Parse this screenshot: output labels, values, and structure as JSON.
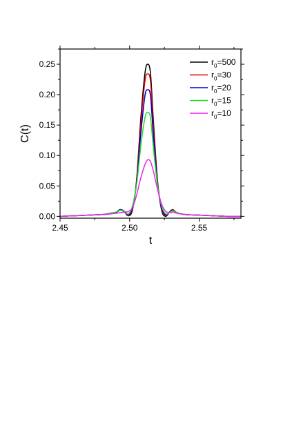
{
  "chart_data": {
    "type": "line",
    "title": "",
    "xlabel": "t",
    "ylabel": "C(t)",
    "xlim": [
      2.45,
      2.58
    ],
    "ylim": [
      -0.003,
      0.275
    ],
    "xticks": [
      2.45,
      2.5,
      2.55
    ],
    "xtick_labels": [
      "2.45",
      "2.50",
      "2.55"
    ],
    "yticks": [
      0.0,
      0.05,
      0.1,
      0.15,
      0.2,
      0.25
    ],
    "ytick_labels": [
      "0.00",
      "0.05",
      "0.10",
      "0.15",
      "0.20",
      "0.25"
    ],
    "grid": false,
    "legend_position": "top-right",
    "series": [
      {
        "name": "r0=500",
        "legend_main": "r",
        "legend_sub": "0",
        "legend_rest": "=500",
        "color": "#000000",
        "x": [
          2.45,
          2.46,
          2.47,
          2.48,
          2.485,
          2.49,
          2.493,
          2.496,
          2.499,
          2.502,
          2.505,
          2.508,
          2.511,
          2.513,
          2.515,
          2.517,
          2.52,
          2.523,
          2.526,
          2.529,
          2.531,
          2.534,
          2.54,
          2.55,
          2.56,
          2.57,
          2.58
        ],
        "y": [
          0.0,
          0.001,
          0.002,
          0.003,
          0.004,
          0.006,
          0.01,
          0.008,
          0.001,
          0.01,
          0.06,
          0.16,
          0.235,
          0.25,
          0.235,
          0.16,
          0.06,
          0.01,
          0.0,
          0.008,
          0.011,
          0.006,
          0.003,
          0.002,
          0.001,
          0.0,
          0.0
        ]
      },
      {
        "name": "r0=30",
        "legend_main": "r",
        "legend_sub": "0",
        "legend_rest": "=30",
        "color": "#dd0000",
        "x": [
          2.45,
          2.46,
          2.47,
          2.48,
          2.485,
          2.49,
          2.493,
          2.496,
          2.499,
          2.502,
          2.505,
          2.508,
          2.511,
          2.513,
          2.515,
          2.517,
          2.52,
          2.523,
          2.526,
          2.529,
          2.531,
          2.534,
          2.54,
          2.55,
          2.56,
          2.57,
          2.58
        ],
        "y": [
          0.0,
          0.001,
          0.002,
          0.003,
          0.004,
          0.006,
          0.011,
          0.008,
          0.001,
          0.012,
          0.058,
          0.15,
          0.222,
          0.234,
          0.222,
          0.15,
          0.058,
          0.012,
          0.001,
          0.008,
          0.011,
          0.006,
          0.003,
          0.002,
          0.001,
          0.0,
          0.0
        ]
      },
      {
        "name": "r0=20",
        "legend_main": "r",
        "legend_sub": "0",
        "legend_rest": "=20",
        "color": "#0000cc",
        "x": [
          2.45,
          2.46,
          2.47,
          2.48,
          2.485,
          2.49,
          2.493,
          2.496,
          2.499,
          2.502,
          2.505,
          2.508,
          2.511,
          2.513,
          2.515,
          2.517,
          2.52,
          2.523,
          2.526,
          2.529,
          2.531,
          2.534,
          2.54,
          2.55,
          2.56,
          2.57,
          2.58
        ],
        "y": [
          0.0,
          0.001,
          0.002,
          0.003,
          0.004,
          0.006,
          0.011,
          0.009,
          0.002,
          0.014,
          0.055,
          0.135,
          0.198,
          0.208,
          0.198,
          0.135,
          0.055,
          0.014,
          0.002,
          0.008,
          0.01,
          0.006,
          0.003,
          0.002,
          0.001,
          0.0,
          0.0
        ]
      },
      {
        "name": "r0=15",
        "legend_main": "r",
        "legend_sub": "0",
        "legend_rest": "=15",
        "color": "#22dd22",
        "x": [
          2.45,
          2.46,
          2.47,
          2.48,
          2.485,
          2.49,
          2.493,
          2.496,
          2.499,
          2.502,
          2.505,
          2.508,
          2.511,
          2.513,
          2.515,
          2.517,
          2.52,
          2.523,
          2.526,
          2.529,
          2.531,
          2.534,
          2.54,
          2.55,
          2.56,
          2.57,
          2.58
        ],
        "y": [
          0.0,
          0.001,
          0.002,
          0.003,
          0.005,
          0.007,
          0.01,
          0.009,
          0.004,
          0.017,
          0.052,
          0.115,
          0.162,
          0.171,
          0.162,
          0.115,
          0.052,
          0.017,
          0.004,
          0.007,
          0.009,
          0.006,
          0.003,
          0.002,
          0.001,
          0.0,
          0.0
        ]
      },
      {
        "name": "r0=10",
        "legend_main": "r",
        "legend_sub": "0",
        "legend_rest": "=10",
        "color": "#ee22ee",
        "x": [
          2.45,
          2.46,
          2.47,
          2.48,
          2.485,
          2.49,
          2.493,
          2.496,
          2.499,
          2.502,
          2.505,
          2.508,
          2.511,
          2.513,
          2.515,
          2.517,
          2.52,
          2.523,
          2.526,
          2.529,
          2.531,
          2.534,
          2.54,
          2.55,
          2.56,
          2.57,
          2.58
        ],
        "y": [
          0.0,
          0.001,
          0.002,
          0.003,
          0.004,
          0.005,
          0.006,
          0.007,
          0.008,
          0.014,
          0.035,
          0.063,
          0.085,
          0.093,
          0.09,
          0.075,
          0.045,
          0.02,
          0.008,
          0.006,
          0.007,
          0.005,
          0.003,
          0.002,
          0.001,
          0.0,
          0.0
        ]
      }
    ]
  }
}
